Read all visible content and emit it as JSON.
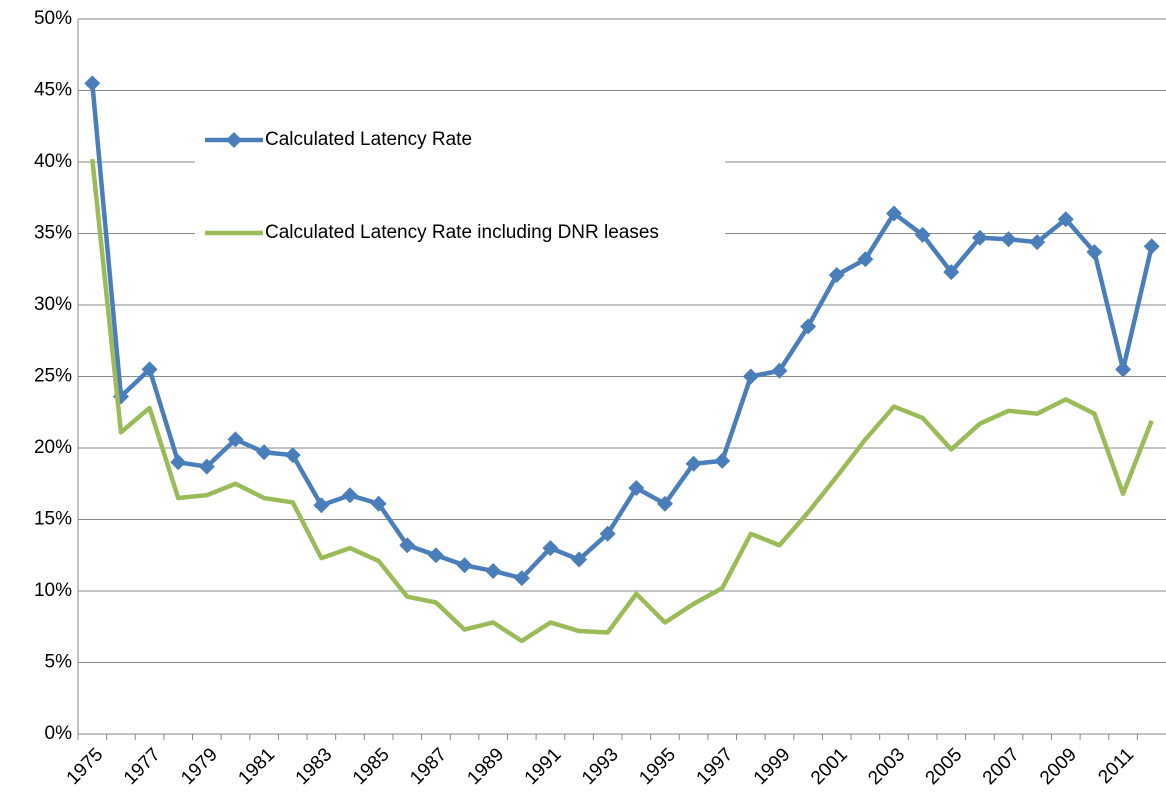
{
  "chart_data": {
    "type": "line",
    "categories": [
      "1975",
      null,
      "1977",
      null,
      "1979",
      null,
      "1981",
      null,
      "1983",
      null,
      "1985",
      null,
      "1987",
      null,
      "1989",
      null,
      "1991",
      null,
      "1993",
      null,
      "1995",
      null,
      "1997",
      null,
      "1999",
      null,
      "2001",
      null,
      "2003",
      null,
      "2005",
      null,
      "2007",
      null,
      "2009",
      null,
      "2011",
      null
    ],
    "series": [
      {
        "name": "Calculated Latency Rate",
        "color": "#4a7ebb",
        "marker": "diamond",
        "values": [
          45.5,
          23.6,
          25.5,
          19.0,
          18.7,
          20.6,
          19.7,
          19.5,
          16.0,
          16.7,
          16.1,
          13.2,
          12.5,
          11.8,
          11.4,
          10.9,
          13.0,
          12.2,
          14.0,
          17.2,
          16.1,
          18.9,
          19.1,
          25.0,
          25.4,
          28.5,
          32.1,
          33.2,
          36.4,
          34.9,
          32.3,
          34.7,
          34.6,
          34.4,
          36.0,
          33.7,
          25.5,
          34.1
        ]
      },
      {
        "name": "Calculated Latency Rate including DNR leases",
        "color": "#9bbb59",
        "marker": "none",
        "values": [
          40.2,
          21.1,
          22.8,
          16.5,
          16.7,
          17.5,
          16.5,
          16.2,
          12.3,
          13.0,
          12.1,
          9.6,
          9.2,
          7.3,
          7.8,
          6.5,
          7.8,
          7.2,
          7.1,
          9.8,
          7.8,
          9.1,
          10.2,
          14.0,
          13.2,
          15.5,
          18.0,
          20.6,
          22.9,
          22.1,
          19.9,
          21.7,
          22.6,
          22.4,
          23.4,
          22.4,
          16.8,
          21.9
        ]
      }
    ],
    "ylim": [
      0,
      50
    ],
    "yticks": [
      {
        "value": 0,
        "label": "0%"
      },
      {
        "value": 5,
        "label": "5%"
      },
      {
        "value": 10,
        "label": "10%"
      },
      {
        "value": 15,
        "label": "15%"
      },
      {
        "value": 20,
        "label": "20%"
      },
      {
        "value": 25,
        "label": "25%"
      },
      {
        "value": 30,
        "label": "30%"
      },
      {
        "value": 35,
        "label": "35%"
      },
      {
        "value": 40,
        "label": "40%"
      },
      {
        "value": 45,
        "label": "45%"
      },
      {
        "value": 50,
        "label": "50%"
      }
    ],
    "grid": true,
    "legend": "upper-left"
  }
}
